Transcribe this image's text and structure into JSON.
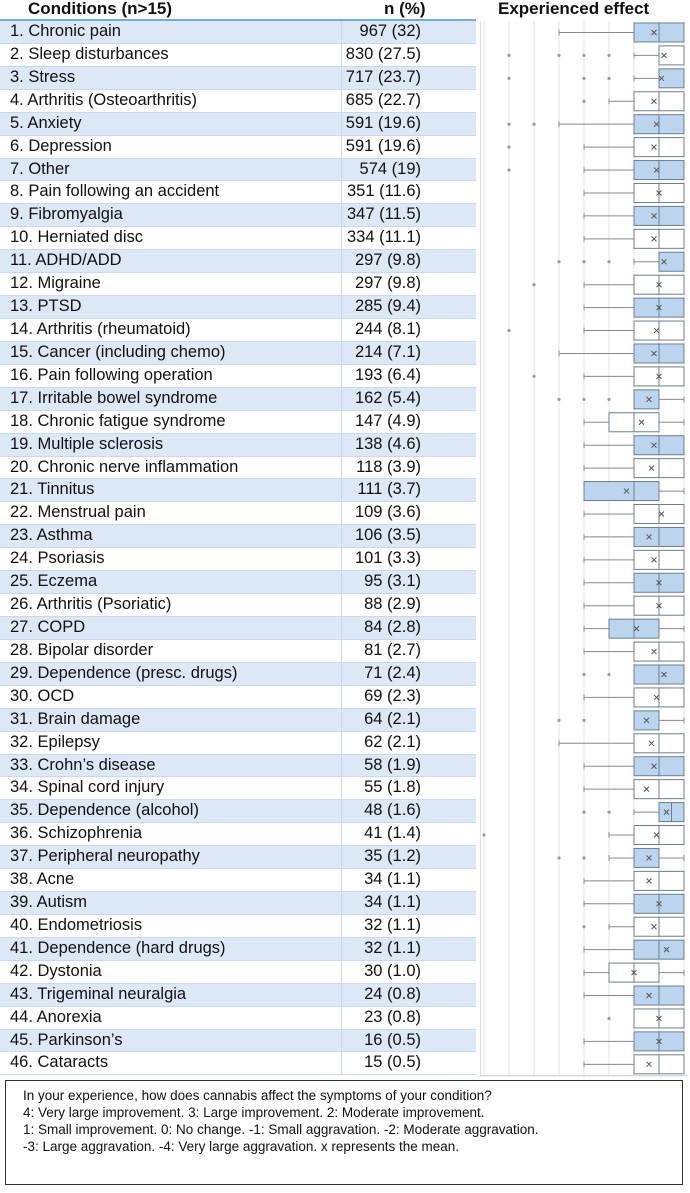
{
  "headers": {
    "conditions": "Conditions (n>15)",
    "n": "n (%)",
    "effect": "Experienced effect"
  },
  "rows": [
    {
      "label": "1. Chronic pain",
      "n": "967 (32)"
    },
    {
      "label": "2. Sleep disturbances",
      "n": "830 (27.5)"
    },
    {
      "label": "3. Stress",
      "n": "717 (23.7)"
    },
    {
      "label": "4. Arthritis (Osteoarthritis)",
      "n": "685 (22.7)"
    },
    {
      "label": "5. Anxiety",
      "n": "591 (19.6)"
    },
    {
      "label": "6. Depression",
      "n": "591 (19.6)"
    },
    {
      "label": "7. Other",
      "n": "574 (19)"
    },
    {
      "label": "8. Pain following an accident",
      "n": "351 (11.6)"
    },
    {
      "label": "9. Fibromyalgia",
      "n": "347 (11.5)"
    },
    {
      "label": "10. Herniated disc",
      "n": "334 (11.1)"
    },
    {
      "label": "11. ADHD/ADD",
      "n": "297 (9.8)"
    },
    {
      "label": "12. Migraine",
      "n": "297 (9.8)"
    },
    {
      "label": "13. PTSD",
      "n": "285 (9.4)"
    },
    {
      "label": "14. Arthritis (rheumatoid)",
      "n": "244 (8.1)"
    },
    {
      "label": "15. Cancer (including chemo)",
      "n": "214 (7.1)"
    },
    {
      "label": "16. Pain following operation",
      "n": "193 (6.4)"
    },
    {
      "label": "17. Irritable bowel syndrome",
      "n": "162 (5.4)"
    },
    {
      "label": "18. Chronic fatigue syndrome",
      "n": "147 (4.9)"
    },
    {
      "label": "19. Multiple sclerosis",
      "n": "138 (4.6)"
    },
    {
      "label": "20. Chronic nerve inflammation",
      "n": "118 (3.9)"
    },
    {
      "label": "21. Tinnitus",
      "n": "111 (3.7)"
    },
    {
      "label": "22. Menstrual pain",
      "n": "109 (3.6)"
    },
    {
      "label": "23. Asthma",
      "n": "106 (3.5)"
    },
    {
      "label": "24. Psoriasis",
      "n": "101 (3.3)"
    },
    {
      "label": "25. Eczema",
      "n": "95 (3.1)"
    },
    {
      "label": "26. Arthritis (Psoriatic)",
      "n": "88 (2.9)"
    },
    {
      "label": "27. COPD",
      "n": "84 (2.8)"
    },
    {
      "label": "28. Bipolar disorder",
      "n": "81 (2.7)"
    },
    {
      "label": "29. Dependence (presc. drugs)",
      "n": "71 (2.4)"
    },
    {
      "label": "30. OCD",
      "n": "69 (2.3)"
    },
    {
      "label": "31. Brain damage",
      "n": "64 (2.1)"
    },
    {
      "label": "32. Epilepsy",
      "n": "62 (2.1)"
    },
    {
      "label": "33. Crohn’s disease",
      "n": "58 (1.9)"
    },
    {
      "label": "34. Spinal cord injury",
      "n": "55 (1.8)"
    },
    {
      "label": "35. Dependence (alcohol)",
      "n": "48 (1.6)"
    },
    {
      "label": "36. Schizophrenia",
      "n": "41 (1.4)"
    },
    {
      "label": "37. Peripheral neuropathy",
      "n": "35 (1.2)"
    },
    {
      "label": "38. Acne",
      "n": "34 (1.1)"
    },
    {
      "label": "39. Autism",
      "n": "34 (1.1)"
    },
    {
      "label": "40. Endometriosis",
      "n": "32 (1.1)"
    },
    {
      "label": "41. Dependence (hard drugs)",
      "n": "32 (1.1)"
    },
    {
      "label": "42. Dystonia",
      "n": "30 (1.0)"
    },
    {
      "label": "43. Trigeminal neuralgia",
      "n": "24 (0.8)"
    },
    {
      "label": "44. Anorexia",
      "n": "23 (0.8)"
    },
    {
      "label": "45. Parkinson’s",
      "n": "16 (0.5)"
    },
    {
      "label": "46. Cataracts",
      "n": "15 (0.5)"
    }
  ],
  "legend": [
    "In your experience, how does cannabis affect the symptoms of your condition?",
    "4: Very large improvement. 3: Large improvement. 2: Moderate improvement.",
    "1: Small improvement. 0: No change. -1: Small aggravation. -2: Moderate aggravation.",
    "-3: Large aggravation. -4: Very large aggravation. x represents the mean."
  ],
  "colors": {
    "shade": "#dce8f5",
    "box_fill": "#bcd5ef",
    "box_stroke": "#6d7d8f",
    "header_rule": "#7ba7d4"
  },
  "chart_data": {
    "type": "boxplot",
    "title": "Experienced effect",
    "xlim": [
      -4,
      4
    ],
    "xticks": [
      "-4",
      "0",
      "4"
    ],
    "grid": true,
    "series": [
      {
        "q1": 2,
        "median": 3,
        "q3": 4,
        "wmin": -1,
        "wmax": 4,
        "mean": 2.8,
        "outliers": []
      },
      {
        "q1": 3,
        "median": 3,
        "q3": 4,
        "wmin": 2,
        "wmax": 4,
        "mean": 3.2,
        "outliers": [
          -3,
          -1,
          0,
          1
        ]
      },
      {
        "q1": 3,
        "median": 3,
        "q3": 4,
        "wmin": 2,
        "wmax": 4,
        "mean": 3.1,
        "outliers": [
          -3,
          0,
          1
        ]
      },
      {
        "q1": 2,
        "median": 3,
        "q3": 4,
        "wmin": 1,
        "wmax": 4,
        "mean": 2.8,
        "outliers": [
          0
        ]
      },
      {
        "q1": 2,
        "median": 3,
        "q3": 4,
        "wmin": -1,
        "wmax": 4,
        "mean": 2.9,
        "outliers": [
          -3,
          -2
        ]
      },
      {
        "q1": 2,
        "median": 3,
        "q3": 4,
        "wmin": 0,
        "wmax": 4,
        "mean": 2.8,
        "outliers": [
          -3
        ]
      },
      {
        "q1": 2,
        "median": 3,
        "q3": 4,
        "wmin": 0,
        "wmax": 4,
        "mean": 2.9,
        "outliers": [
          -3
        ]
      },
      {
        "q1": 2,
        "median": 3,
        "q3": 4,
        "wmin": 0,
        "wmax": 4,
        "mean": 3.0,
        "outliers": []
      },
      {
        "q1": 2,
        "median": 3,
        "q3": 4,
        "wmin": 0,
        "wmax": 4,
        "mean": 2.8,
        "outliers": []
      },
      {
        "q1": 2,
        "median": 3,
        "q3": 4,
        "wmin": 0,
        "wmax": 4,
        "mean": 2.8,
        "outliers": []
      },
      {
        "q1": 3,
        "median": 3,
        "q3": 4,
        "wmin": 2,
        "wmax": 4,
        "mean": 3.2,
        "outliers": [
          -1,
          0,
          1
        ]
      },
      {
        "q1": 2,
        "median": 3,
        "q3": 4,
        "wmin": 0,
        "wmax": 4,
        "mean": 3.0,
        "outliers": [
          -2
        ]
      },
      {
        "q1": 2,
        "median": 3,
        "q3": 4,
        "wmin": 0,
        "wmax": 4,
        "mean": 3.0,
        "outliers": []
      },
      {
        "q1": 2,
        "median": 3,
        "q3": 4,
        "wmin": 0,
        "wmax": 4,
        "mean": 2.9,
        "outliers": [
          -3
        ]
      },
      {
        "q1": 2,
        "median": 3,
        "q3": 4,
        "wmin": -1,
        "wmax": 4,
        "mean": 2.8,
        "outliers": []
      },
      {
        "q1": 2,
        "median": 3,
        "q3": 4,
        "wmin": 0,
        "wmax": 4,
        "mean": 3.0,
        "outliers": [
          -2
        ]
      },
      {
        "q1": 2,
        "median": 3,
        "q3": 3,
        "wmin": 2,
        "wmax": 4,
        "mean": 2.6,
        "outliers": [
          -1,
          0,
          1
        ]
      },
      {
        "q1": 1,
        "median": 2,
        "q3": 3,
        "wmin": 0,
        "wmax": 4,
        "mean": 2.3,
        "outliers": []
      },
      {
        "q1": 2,
        "median": 3,
        "q3": 4,
        "wmin": 0,
        "wmax": 4,
        "mean": 2.8,
        "outliers": []
      },
      {
        "q1": 2,
        "median": 3,
        "q3": 4,
        "wmin": 0,
        "wmax": 4,
        "mean": 2.7,
        "outliers": []
      },
      {
        "q1": 0,
        "median": 2,
        "q3": 3,
        "wmin": 0,
        "wmax": 4,
        "mean": 1.7,
        "outliers": []
      },
      {
        "q1": 2,
        "median": 3,
        "q3": 4,
        "wmin": 0,
        "wmax": 4,
        "mean": 3.1,
        "outliers": []
      },
      {
        "q1": 2,
        "median": 3,
        "q3": 4,
        "wmin": 0,
        "wmax": 4,
        "mean": 2.6,
        "outliers": []
      },
      {
        "q1": 2,
        "median": 3,
        "q3": 4,
        "wmin": 0,
        "wmax": 4,
        "mean": 2.8,
        "outliers": []
      },
      {
        "q1": 2,
        "median": 3,
        "q3": 4,
        "wmin": 0,
        "wmax": 4,
        "mean": 3.0,
        "outliers": []
      },
      {
        "q1": 2,
        "median": 3,
        "q3": 4,
        "wmin": 0,
        "wmax": 4,
        "mean": 3.0,
        "outliers": []
      },
      {
        "q1": 1,
        "median": 2,
        "q3": 3,
        "wmin": 0,
        "wmax": 4,
        "mean": 2.1,
        "outliers": []
      },
      {
        "q1": 2,
        "median": 3,
        "q3": 4,
        "wmin": 0,
        "wmax": 4,
        "mean": 2.8,
        "outliers": []
      },
      {
        "q1": 2,
        "median": 3,
        "q3": 4,
        "wmin": 2,
        "wmax": 4,
        "mean": 3.2,
        "outliers": [
          0,
          1
        ]
      },
      {
        "q1": 2,
        "median": 3,
        "q3": 4,
        "wmin": 0,
        "wmax": 4,
        "mean": 2.9,
        "outliers": []
      },
      {
        "q1": 2,
        "median": 3,
        "q3": 3,
        "wmin": 2,
        "wmax": 4,
        "mean": 2.5,
        "outliers": [
          -1,
          0
        ]
      },
      {
        "q1": 2,
        "median": 3,
        "q3": 4,
        "wmin": -1,
        "wmax": 4,
        "mean": 2.7,
        "outliers": []
      },
      {
        "q1": 2,
        "median": 3,
        "q3": 4,
        "wmin": 0,
        "wmax": 4,
        "mean": 2.8,
        "outliers": []
      },
      {
        "q1": 2,
        "median": 3,
        "q3": 4,
        "wmin": 0,
        "wmax": 4,
        "mean": 2.5,
        "outliers": []
      },
      {
        "q1": 3,
        "median": 3.5,
        "q3": 4,
        "wmin": 2,
        "wmax": 4,
        "mean": 3.3,
        "outliers": [
          0,
          1
        ]
      },
      {
        "q1": 2,
        "median": 3,
        "q3": 4,
        "wmin": 1,
        "wmax": 4,
        "mean": 2.9,
        "outliers": [
          -4
        ]
      },
      {
        "q1": 2,
        "median": 3,
        "q3": 3,
        "wmin": 1,
        "wmax": 4,
        "mean": 2.6,
        "outliers": [
          -1,
          0
        ]
      },
      {
        "q1": 2,
        "median": 3,
        "q3": 4,
        "wmin": 0,
        "wmax": 4,
        "mean": 2.6,
        "outliers": []
      },
      {
        "q1": 2,
        "median": 3,
        "q3": 4,
        "wmin": 0,
        "wmax": 4,
        "mean": 3.0,
        "outliers": []
      },
      {
        "q1": 2,
        "median": 3,
        "q3": 4,
        "wmin": 1,
        "wmax": 4,
        "mean": 2.8,
        "outliers": [
          0
        ]
      },
      {
        "q1": 2,
        "median": 3,
        "q3": 4,
        "wmin": 0,
        "wmax": 4,
        "mean": 3.3,
        "outliers": []
      },
      {
        "q1": 1,
        "median": 2,
        "q3": 3,
        "wmin": 0,
        "wmax": 4,
        "mean": 2.0,
        "outliers": []
      },
      {
        "q1": 2,
        "median": 3,
        "q3": 4,
        "wmin": 0,
        "wmax": 4,
        "mean": 2.6,
        "outliers": []
      },
      {
        "q1": 2,
        "median": 3,
        "q3": 4,
        "wmin": 2,
        "wmax": 4,
        "mean": 3.0,
        "outliers": [
          1
        ]
      },
      {
        "q1": 2,
        "median": 3,
        "q3": 4,
        "wmin": 0,
        "wmax": 4,
        "mean": 3.0,
        "outliers": []
      },
      {
        "q1": 2,
        "median": 3,
        "q3": 4,
        "wmin": 0,
        "wmax": 4,
        "mean": 2.6,
        "outliers": []
      }
    ]
  }
}
